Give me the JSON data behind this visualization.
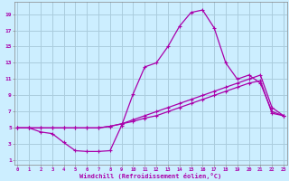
{
  "xlabel": "Windchill (Refroidissement éolien,°C)",
  "bg_color": "#cceeff",
  "grid_color": "#aaccdd",
  "line_color": "#aa00aa",
  "x_ticks": [
    0,
    1,
    2,
    3,
    4,
    5,
    6,
    7,
    8,
    9,
    10,
    11,
    12,
    13,
    14,
    15,
    16,
    17,
    18,
    19,
    20,
    21,
    22,
    23
  ],
  "y_ticks": [
    1,
    3,
    5,
    7,
    9,
    11,
    13,
    15,
    17,
    19
  ],
  "xlim": [
    -0.3,
    23.3
  ],
  "ylim": [
    0.5,
    20.5
  ],
  "line1_x": [
    0,
    1,
    2,
    3,
    4,
    5,
    6,
    7,
    8,
    9,
    10,
    11,
    12,
    13,
    14,
    15,
    16,
    17,
    18,
    19,
    20,
    21,
    22,
    23
  ],
  "line1_y": [
    5,
    5,
    4.5,
    4.3,
    3.2,
    2.2,
    2.1,
    2.1,
    2.2,
    5.3,
    9.2,
    12.5,
    13,
    15,
    17.5,
    19.2,
    19.5,
    17.3,
    13,
    11,
    11.5,
    10.5,
    7,
    6.5
  ],
  "line2_x": [
    0,
    1,
    2,
    3,
    4,
    5,
    6,
    7,
    8,
    9,
    10,
    11,
    12,
    13,
    14,
    15,
    16,
    17,
    18,
    19,
    20,
    21,
    22,
    23
  ],
  "line2_y": [
    5,
    5,
    5,
    5,
    5,
    5,
    5,
    5,
    5.2,
    5.5,
    6,
    6.5,
    7,
    7.5,
    8,
    8.5,
    9,
    9.5,
    10,
    10.5,
    11,
    11.5,
    7.5,
    6.5
  ],
  "line3_x": [
    0,
    1,
    2,
    3,
    4,
    5,
    6,
    7,
    8,
    9,
    10,
    11,
    12,
    13,
    14,
    15,
    16,
    17,
    18,
    19,
    20,
    21,
    22,
    23
  ],
  "line3_y": [
    5,
    5,
    5,
    5,
    5,
    5,
    5,
    5,
    5.2,
    5.5,
    5.8,
    6.2,
    6.5,
    7,
    7.5,
    8,
    8.5,
    9,
    9.5,
    10,
    10.5,
    10.8,
    6.8,
    6.5
  ]
}
